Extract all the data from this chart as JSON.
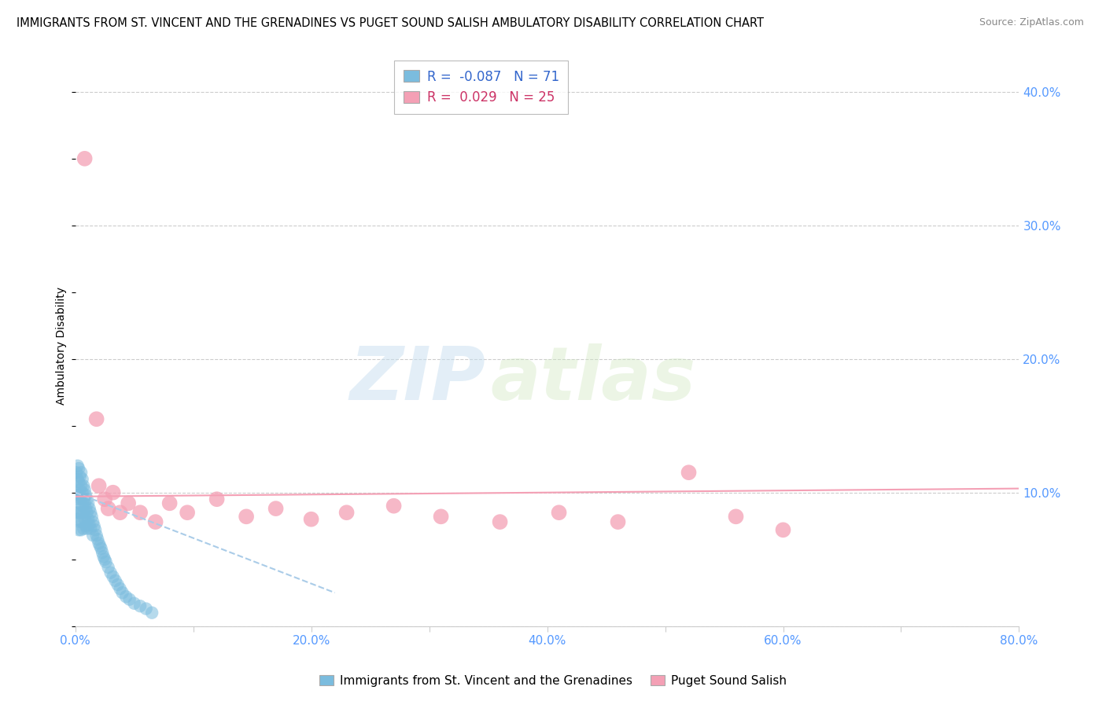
{
  "title": "IMMIGRANTS FROM ST. VINCENT AND THE GRENADINES VS PUGET SOUND SALISH AMBULATORY DISABILITY CORRELATION CHART",
  "source": "Source: ZipAtlas.com",
  "ylabel": "Ambulatory Disability",
  "xlim": [
    0.0,
    0.8
  ],
  "ylim": [
    0.0,
    0.42
  ],
  "xtick_positions": [
    0.0,
    0.1,
    0.2,
    0.3,
    0.4,
    0.5,
    0.6,
    0.7,
    0.8
  ],
  "xticklabels": [
    "0.0%",
    "",
    "20.0%",
    "",
    "40.0%",
    "",
    "60.0%",
    "",
    "80.0%"
  ],
  "ytick_positions": [
    0.0,
    0.1,
    0.2,
    0.3,
    0.4
  ],
  "yticklabels_right": [
    "",
    "10.0%",
    "20.0%",
    "30.0%",
    "40.0%"
  ],
  "blue_R": -0.087,
  "blue_N": 71,
  "pink_R": 0.029,
  "pink_N": 25,
  "blue_color": "#7bbcde",
  "pink_color": "#f4a0b5",
  "blue_line_color": "#aacce8",
  "pink_line_color": "#f4a0b5",
  "blue_scatter_x": [
    0.001,
    0.001,
    0.001,
    0.002,
    0.002,
    0.002,
    0.002,
    0.003,
    0.003,
    0.003,
    0.003,
    0.003,
    0.004,
    0.004,
    0.004,
    0.004,
    0.005,
    0.005,
    0.005,
    0.005,
    0.005,
    0.006,
    0.006,
    0.006,
    0.006,
    0.007,
    0.007,
    0.007,
    0.007,
    0.008,
    0.008,
    0.008,
    0.009,
    0.009,
    0.009,
    0.01,
    0.01,
    0.01,
    0.011,
    0.011,
    0.012,
    0.012,
    0.013,
    0.013,
    0.014,
    0.015,
    0.015,
    0.016,
    0.017,
    0.018,
    0.019,
    0.02,
    0.021,
    0.022,
    0.023,
    0.024,
    0.025,
    0.026,
    0.028,
    0.03,
    0.032,
    0.034,
    0.036,
    0.038,
    0.04,
    0.043,
    0.046,
    0.05,
    0.055,
    0.06,
    0.065
  ],
  "blue_scatter_y": [
    0.115,
    0.1,
    0.085,
    0.12,
    0.11,
    0.095,
    0.08,
    0.118,
    0.108,
    0.098,
    0.085,
    0.072,
    0.112,
    0.102,
    0.092,
    0.078,
    0.115,
    0.105,
    0.095,
    0.085,
    0.072,
    0.11,
    0.1,
    0.09,
    0.078,
    0.105,
    0.095,
    0.085,
    0.073,
    0.102,
    0.092,
    0.08,
    0.098,
    0.088,
    0.075,
    0.095,
    0.085,
    0.073,
    0.092,
    0.08,
    0.088,
    0.076,
    0.085,
    0.073,
    0.082,
    0.078,
    0.068,
    0.075,
    0.072,
    0.068,
    0.065,
    0.062,
    0.06,
    0.058,
    0.055,
    0.052,
    0.05,
    0.048,
    0.044,
    0.04,
    0.037,
    0.034,
    0.031,
    0.028,
    0.025,
    0.022,
    0.02,
    0.017,
    0.015,
    0.013,
    0.01
  ],
  "pink_scatter_x": [
    0.008,
    0.018,
    0.02,
    0.025,
    0.028,
    0.032,
    0.038,
    0.045,
    0.055,
    0.068,
    0.08,
    0.095,
    0.12,
    0.145,
    0.17,
    0.2,
    0.23,
    0.27,
    0.31,
    0.36,
    0.41,
    0.46,
    0.52,
    0.56,
    0.6
  ],
  "pink_scatter_y": [
    0.35,
    0.155,
    0.105,
    0.095,
    0.088,
    0.1,
    0.085,
    0.092,
    0.085,
    0.078,
    0.092,
    0.085,
    0.095,
    0.082,
    0.088,
    0.08,
    0.085,
    0.09,
    0.082,
    0.078,
    0.085,
    0.078,
    0.115,
    0.082,
    0.072
  ],
  "blue_trendline_x": [
    0.0,
    0.22
  ],
  "blue_trendline_y": [
    0.1,
    0.025
  ],
  "pink_trendline_x": [
    0.0,
    0.8
  ],
  "pink_trendline_y": [
    0.097,
    0.103
  ],
  "watermark_zip": "ZIP",
  "watermark_atlas": "atlas",
  "background_color": "#ffffff",
  "grid_color": "#cccccc",
  "tick_color": "#5599ff",
  "spine_color": "#cccccc"
}
